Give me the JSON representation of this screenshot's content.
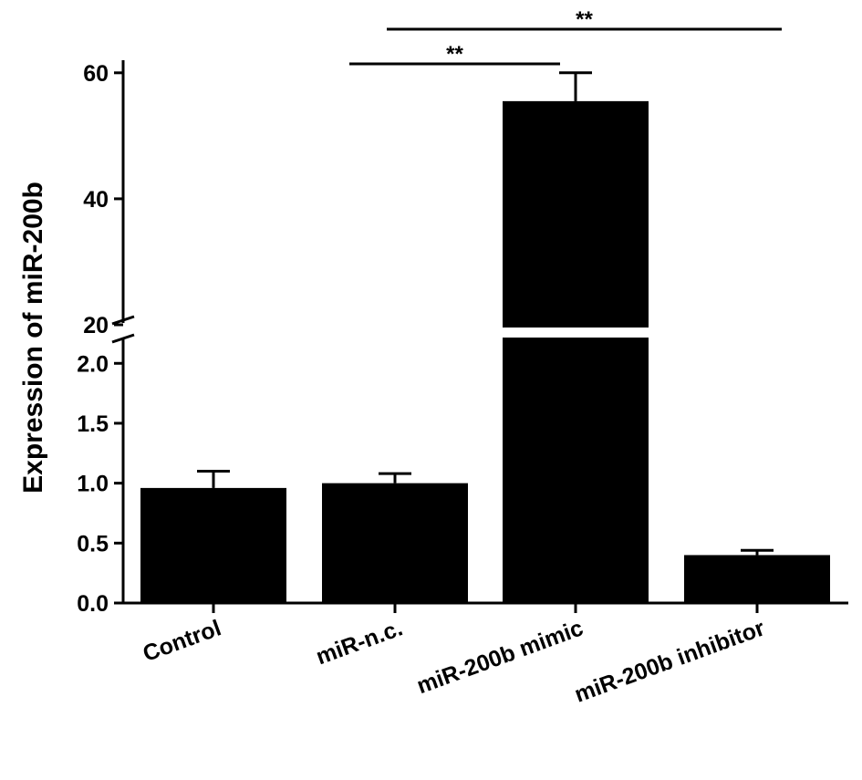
{
  "chart_data": {
    "type": "bar",
    "ylabel": "Expression of miR-200b",
    "xlabel": "",
    "title": "",
    "categories": [
      "Control",
      "miR-n.c.",
      "miR-200b mimic",
      "miR-200b inhibitor"
    ],
    "values": [
      0.96,
      1.0,
      55.5,
      0.4
    ],
    "errors": [
      0.14,
      0.08,
      4.5,
      0.04
    ],
    "broken_axis": {
      "lower": {
        "range": [
          0,
          2.2
        ],
        "ticks": [
          "0.0",
          "0.5",
          "1.0",
          "1.5",
          "2.0"
        ]
      },
      "upper": {
        "range": [
          20,
          62
        ],
        "ticks": [
          "20",
          "40",
          "60"
        ]
      }
    },
    "significance": [
      {
        "from": "miR-n.c.",
        "to": "miR-200b mimic",
        "label": "**"
      },
      {
        "from": "miR-n.c.",
        "to": "miR-200b inhibitor",
        "label": "**"
      }
    ],
    "colors": {
      "bar": "#000000",
      "axis": "#000000"
    },
    "grid": false,
    "legend": "none"
  }
}
